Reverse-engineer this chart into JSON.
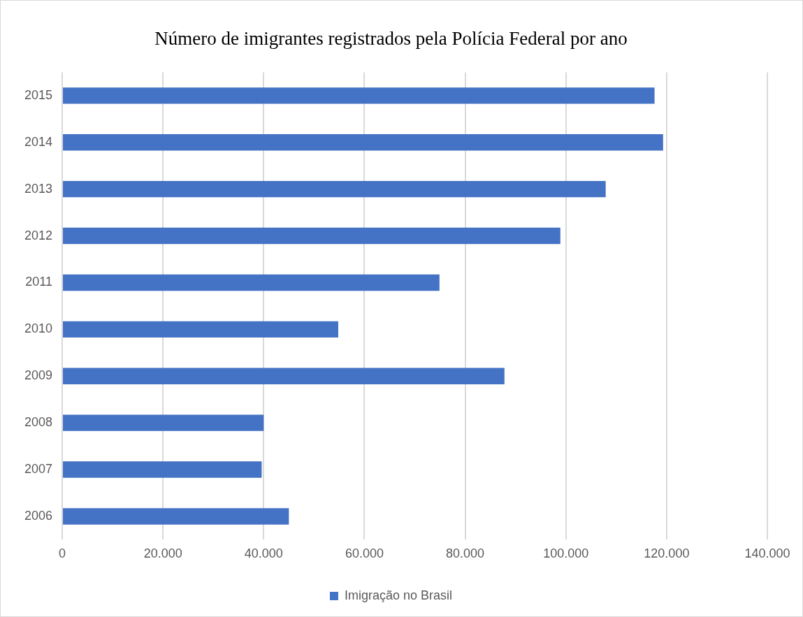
{
  "chart_data": {
    "type": "bar",
    "orientation": "horizontal",
    "title": "Número de imigrantes registrados pela Polícia Federal por ano",
    "categories": [
      "2015",
      "2014",
      "2013",
      "2012",
      "2011",
      "2010",
      "2009",
      "2008",
      "2007",
      "2006"
    ],
    "series": [
      {
        "name": "Imigração no Brasil",
        "color": "#4472c4",
        "values": [
          117600,
          119300,
          107900,
          98900,
          74900,
          54800,
          87800,
          40000,
          39600,
          45000
        ]
      }
    ],
    "xlim": [
      0,
      140000
    ],
    "xticks": [
      0,
      {
        "value": 20000,
        "label": "20.000"
      },
      {
        "value": 40000,
        "label": "40.000"
      },
      {
        "value": 60000,
        "label": "60.000"
      },
      {
        "value": 80000,
        "label": "80.000"
      },
      {
        "value": 100000,
        "label": "100.000"
      },
      {
        "value": 120000,
        "label": "120.000"
      },
      {
        "value": 140000,
        "label": "140.000"
      }
    ],
    "grid": "x",
    "legend": "bottom"
  }
}
